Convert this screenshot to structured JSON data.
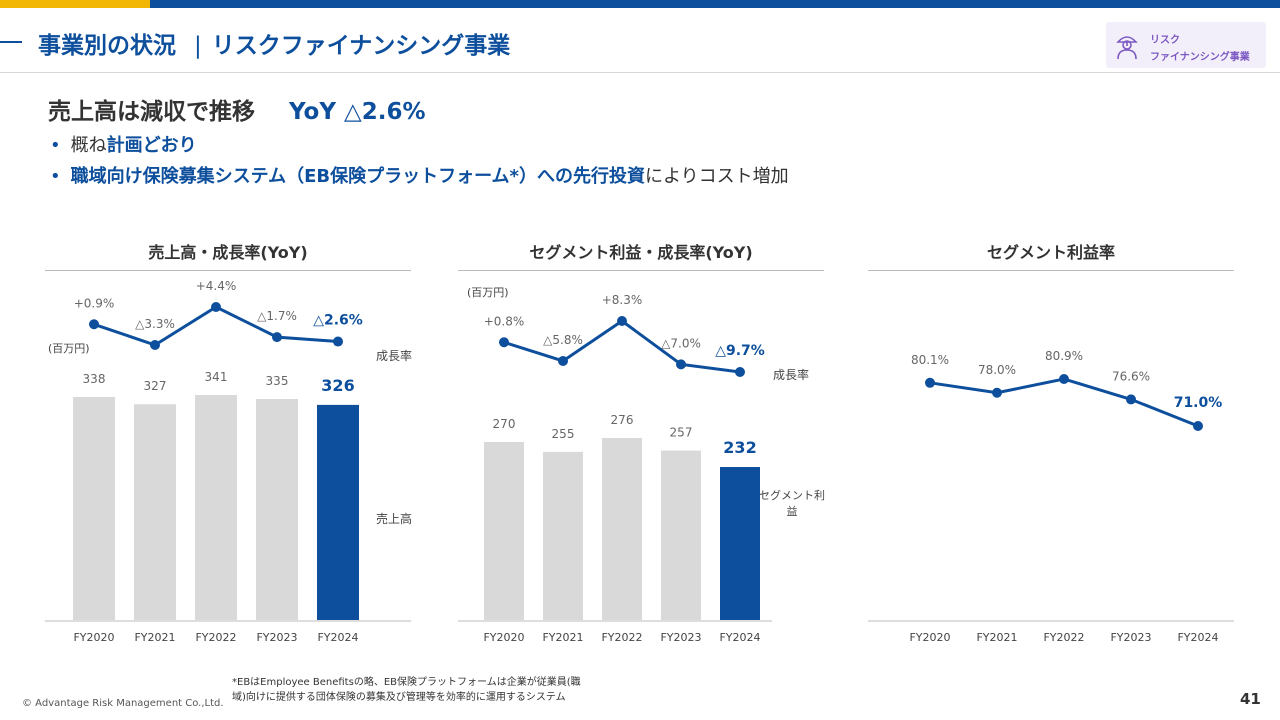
{
  "header": {
    "title_main": "事業別の状況",
    "title_sep": "|",
    "title_sub": "リスクファイナンシング事業",
    "badge": {
      "icon": "person-umbrella-icon",
      "line1": "リスク",
      "line2": "ファイナンシング事業"
    }
  },
  "headline": {
    "text": "売上高は減収で推移",
    "yoy_label": "YoY",
    "yoy_value": "△2.6%"
  },
  "bullets": [
    {
      "prefix": "概ね",
      "highlight": "計画どおり",
      "suffix": ""
    },
    {
      "prefix": "",
      "highlight": "職域向け保険募集システム（EB保険プラットフォーム*）への先行投資",
      "suffix": "によりコスト増加"
    }
  ],
  "colors": {
    "accent": "#0d4f9c",
    "bar_gray": "#d9d9d9",
    "gold": "#f2b705"
  },
  "chart_data": [
    {
      "type": "bar",
      "title": "売上高・成長率(YoY)",
      "unit": "(百万円)",
      "categories": [
        "FY2020",
        "FY2021",
        "FY2022",
        "FY2023",
        "FY2024"
      ],
      "bar_series": {
        "name": "売上高",
        "values": [
          338,
          327,
          341,
          335,
          326
        ],
        "labels": [
          "338",
          "327",
          "341",
          "335",
          "326"
        ]
      },
      "line_series": {
        "name": "成長率",
        "values": [
          0.9,
          -3.3,
          4.4,
          -1.7,
          -2.6
        ],
        "labels": [
          "+0.9%",
          "△3.3%",
          "+4.4%",
          "△1.7%",
          "△2.6%"
        ]
      },
      "highlight_index": 4
    },
    {
      "type": "bar",
      "title": "セグメント利益・成長率(YoY)",
      "unit": "(百万円)",
      "categories": [
        "FY2020",
        "FY2021",
        "FY2022",
        "FY2023",
        "FY2024"
      ],
      "bar_series": {
        "name": "セグメント利益",
        "values": [
          270,
          255,
          276,
          257,
          232
        ],
        "labels": [
          "270",
          "255",
          "276",
          "257",
          "232"
        ]
      },
      "line_series": {
        "name": "成長率",
        "values": [
          0.8,
          -5.8,
          8.3,
          -7.0,
          -9.7
        ],
        "labels": [
          "+0.8%",
          "△5.8%",
          "+8.3%",
          "△7.0%",
          "△9.7%"
        ]
      },
      "highlight_index": 4
    },
    {
      "type": "line",
      "title": "セグメント利益率",
      "categories": [
        "FY2020",
        "FY2021",
        "FY2022",
        "FY2023",
        "FY2024"
      ],
      "series": [
        {
          "values": [
            80.1,
            78.0,
            80.9,
            76.6,
            71.0
          ],
          "labels": [
            "80.1%",
            "78.0%",
            "80.9%",
            "76.6%",
            "71.0%"
          ]
        }
      ],
      "highlight_index": 4
    }
  ],
  "footnote": {
    "line1": "*EBはEmployee Benefitsの略、EB保険プラットフォームは企業が従業員(職",
    "line2": "域)向けに提供する団体保険の募集及び管理等を効率的に運用するシステム"
  },
  "copyright": "© Advantage Risk Management Co.,Ltd.",
  "page_number": "41"
}
